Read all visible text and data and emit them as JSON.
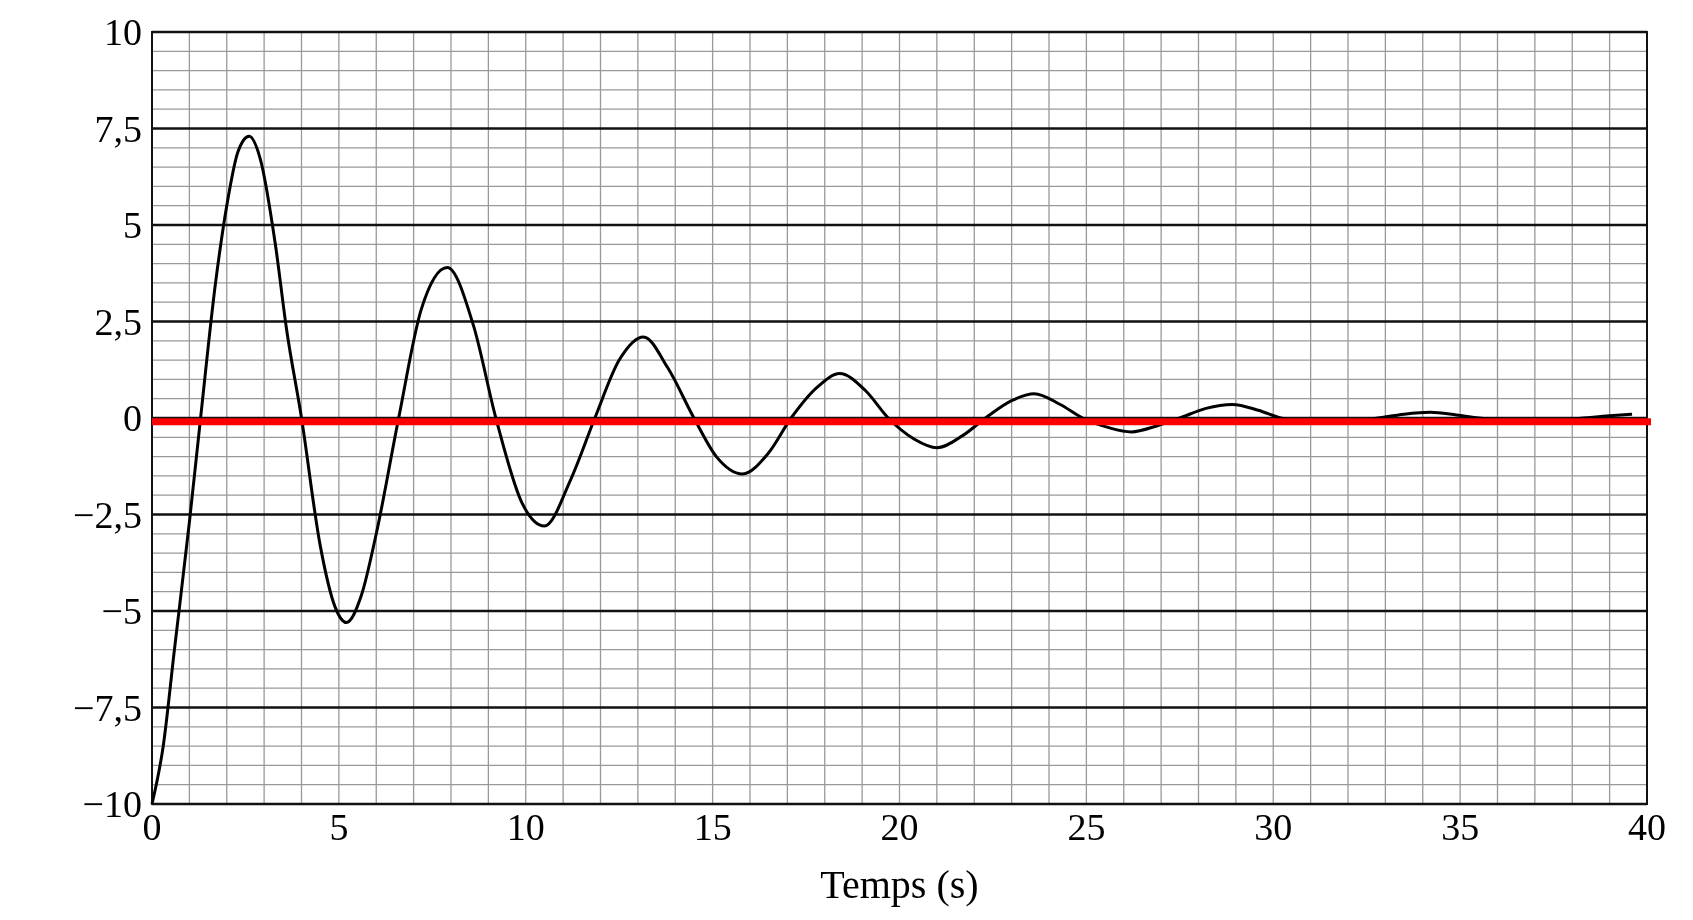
{
  "chart_data": {
    "type": "line",
    "xlabel": "Temps (s)",
    "xlim": [
      0,
      40
    ],
    "xticks": [
      0,
      {
        "value": 1,
        "label": null
      },
      {
        "value": 2,
        "label": null
      },
      {
        "value": 3,
        "label": null
      },
      {
        "value": 4,
        "label": null
      },
      5,
      {
        "value": 6,
        "label": null
      },
      {
        "value": 7,
        "label": null
      },
      {
        "value": 8,
        "label": null
      },
      {
        "value": 9,
        "label": null
      },
      10,
      {
        "value": 11,
        "label": null
      },
      {
        "value": 12,
        "label": null
      },
      {
        "value": 13,
        "label": null
      },
      {
        "value": 14,
        "label": null
      },
      15,
      {
        "value": 16,
        "label": null
      },
      {
        "value": 17,
        "label": null
      },
      {
        "value": 18,
        "label": null
      },
      {
        "value": 19,
        "label": null
      },
      20,
      {
        "value": 21,
        "label": null
      },
      {
        "value": 22,
        "label": null
      },
      {
        "value": 23,
        "label": null
      },
      {
        "value": 24,
        "label": null
      },
      25,
      {
        "value": 26,
        "label": null
      },
      {
        "value": 27,
        "label": null
      },
      {
        "value": 28,
        "label": null
      },
      {
        "value": 29,
        "label": null
      },
      30,
      {
        "value": 31,
        "label": null
      },
      {
        "value": 32,
        "label": null
      },
      {
        "value": 33,
        "label": null
      },
      {
        "value": 34,
        "label": null
      },
      35,
      {
        "value": 36,
        "label": null
      },
      {
        "value": 37,
        "label": null
      },
      {
        "value": 38,
        "label": null
      },
      {
        "value": 39,
        "label": null
      },
      40
    ],
    "ylim": [
      -10,
      10
    ],
    "yticks": [
      {
        "value": -10,
        "label": "−10"
      },
      {
        "value": -9.5,
        "label": null
      },
      {
        "value": -9,
        "label": null
      },
      {
        "value": -8.5,
        "label": null
      },
      {
        "value": -8,
        "label": null
      },
      {
        "value": -7.5,
        "label": "−7,5"
      },
      {
        "value": -7,
        "label": null
      },
      {
        "value": -6.5,
        "label": null
      },
      {
        "value": -6,
        "label": null
      },
      {
        "value": -5.5,
        "label": null
      },
      {
        "value": -5,
        "label": "−5"
      },
      {
        "value": -4.5,
        "label": null
      },
      {
        "value": -4,
        "label": null
      },
      {
        "value": -3.5,
        "label": null
      },
      {
        "value": -3,
        "label": null
      },
      {
        "value": -2.5,
        "label": "−2,5"
      },
      {
        "value": -2,
        "label": null
      },
      {
        "value": -1.5,
        "label": null
      },
      {
        "value": -1,
        "label": null
      },
      {
        "value": -0.5,
        "label": null
      },
      0,
      {
        "value": 0.5,
        "label": null
      },
      {
        "value": 1,
        "label": null
      },
      {
        "value": 1.5,
        "label": null
      },
      {
        "value": 2,
        "label": null
      },
      {
        "value": 2.5,
        "label": "2,5"
      },
      {
        "value": 3,
        "label": null
      },
      {
        "value": 3.5,
        "label": null
      },
      {
        "value": 4,
        "label": null
      },
      {
        "value": 4.5,
        "label": null
      },
      5,
      {
        "value": 5.5,
        "label": null
      },
      {
        "value": 6,
        "label": null
      },
      {
        "value": 6.5,
        "label": null
      },
      {
        "value": 7,
        "label": null
      },
      {
        "value": 7.5,
        "label": "7,5"
      },
      {
        "value": 8,
        "label": null
      },
      {
        "value": 8.5,
        "label": null
      },
      {
        "value": 9,
        "label": null
      },
      {
        "value": 9.5,
        "label": null
      },
      10
    ],
    "grid": true,
    "marker": "none",
    "line_style": "solid",
    "ref_lines": [
      {
        "axis": "y",
        "value": -0.1,
        "color": "#ff0000"
      }
    ],
    "series": [
      {
        "color": "#000000",
        "x": [
          0,
          0.3,
          0.6,
          1,
          1.3,
          1.7,
          2,
          2.3,
          2.6,
          2.9,
          3.3,
          3.6,
          4,
          4.5,
          4.9,
          5.2,
          5.6,
          6,
          6.6,
          7.2,
          7.9,
          8.6,
          9.2,
          9.9,
          10.5,
          11.2,
          11.85,
          12.5,
          13.15,
          13.8,
          14.5,
          15.1,
          15.8,
          16.5,
          17.1,
          17.8,
          18.4,
          19.1,
          19.7,
          20.4,
          21,
          21.7,
          22.3,
          23,
          23.6,
          24.3,
          24.9,
          25.6,
          26.2,
          26.9,
          27.5,
          28.2,
          28.9,
          29.6,
          30.2,
          30.9,
          31.6,
          32.2,
          32.8,
          33.5,
          34.2,
          34.9,
          35.5,
          36.3,
          37,
          37.7,
          38.3,
          39,
          39.6
        ],
        "values": [
          -10,
          -8.5,
          -6,
          -2.7,
          0,
          3.5,
          5.5,
          6.9,
          7.3,
          6.7,
          4.5,
          2.3,
          0,
          -3.3,
          -4.9,
          -5.3,
          -4.6,
          -3,
          0,
          2.8,
          3.9,
          2.4,
          0,
          -2.2,
          -2.8,
          -1.6,
          0,
          1.5,
          2.1,
          1.3,
          0,
          -1,
          -1.45,
          -0.9,
          0,
          0.8,
          1.15,
          0.7,
          0,
          -0.55,
          -0.77,
          -0.45,
          0,
          0.45,
          0.63,
          0.35,
          0,
          -0.25,
          -0.36,
          -0.2,
          0,
          0.25,
          0.35,
          0.2,
          0,
          -0.1,
          null,
          -0.08,
          0,
          0.1,
          0.15,
          0.08,
          0,
          -0.07,
          -0.1,
          -0.05,
          0,
          0.06,
          0.1
        ]
      }
    ]
  }
}
